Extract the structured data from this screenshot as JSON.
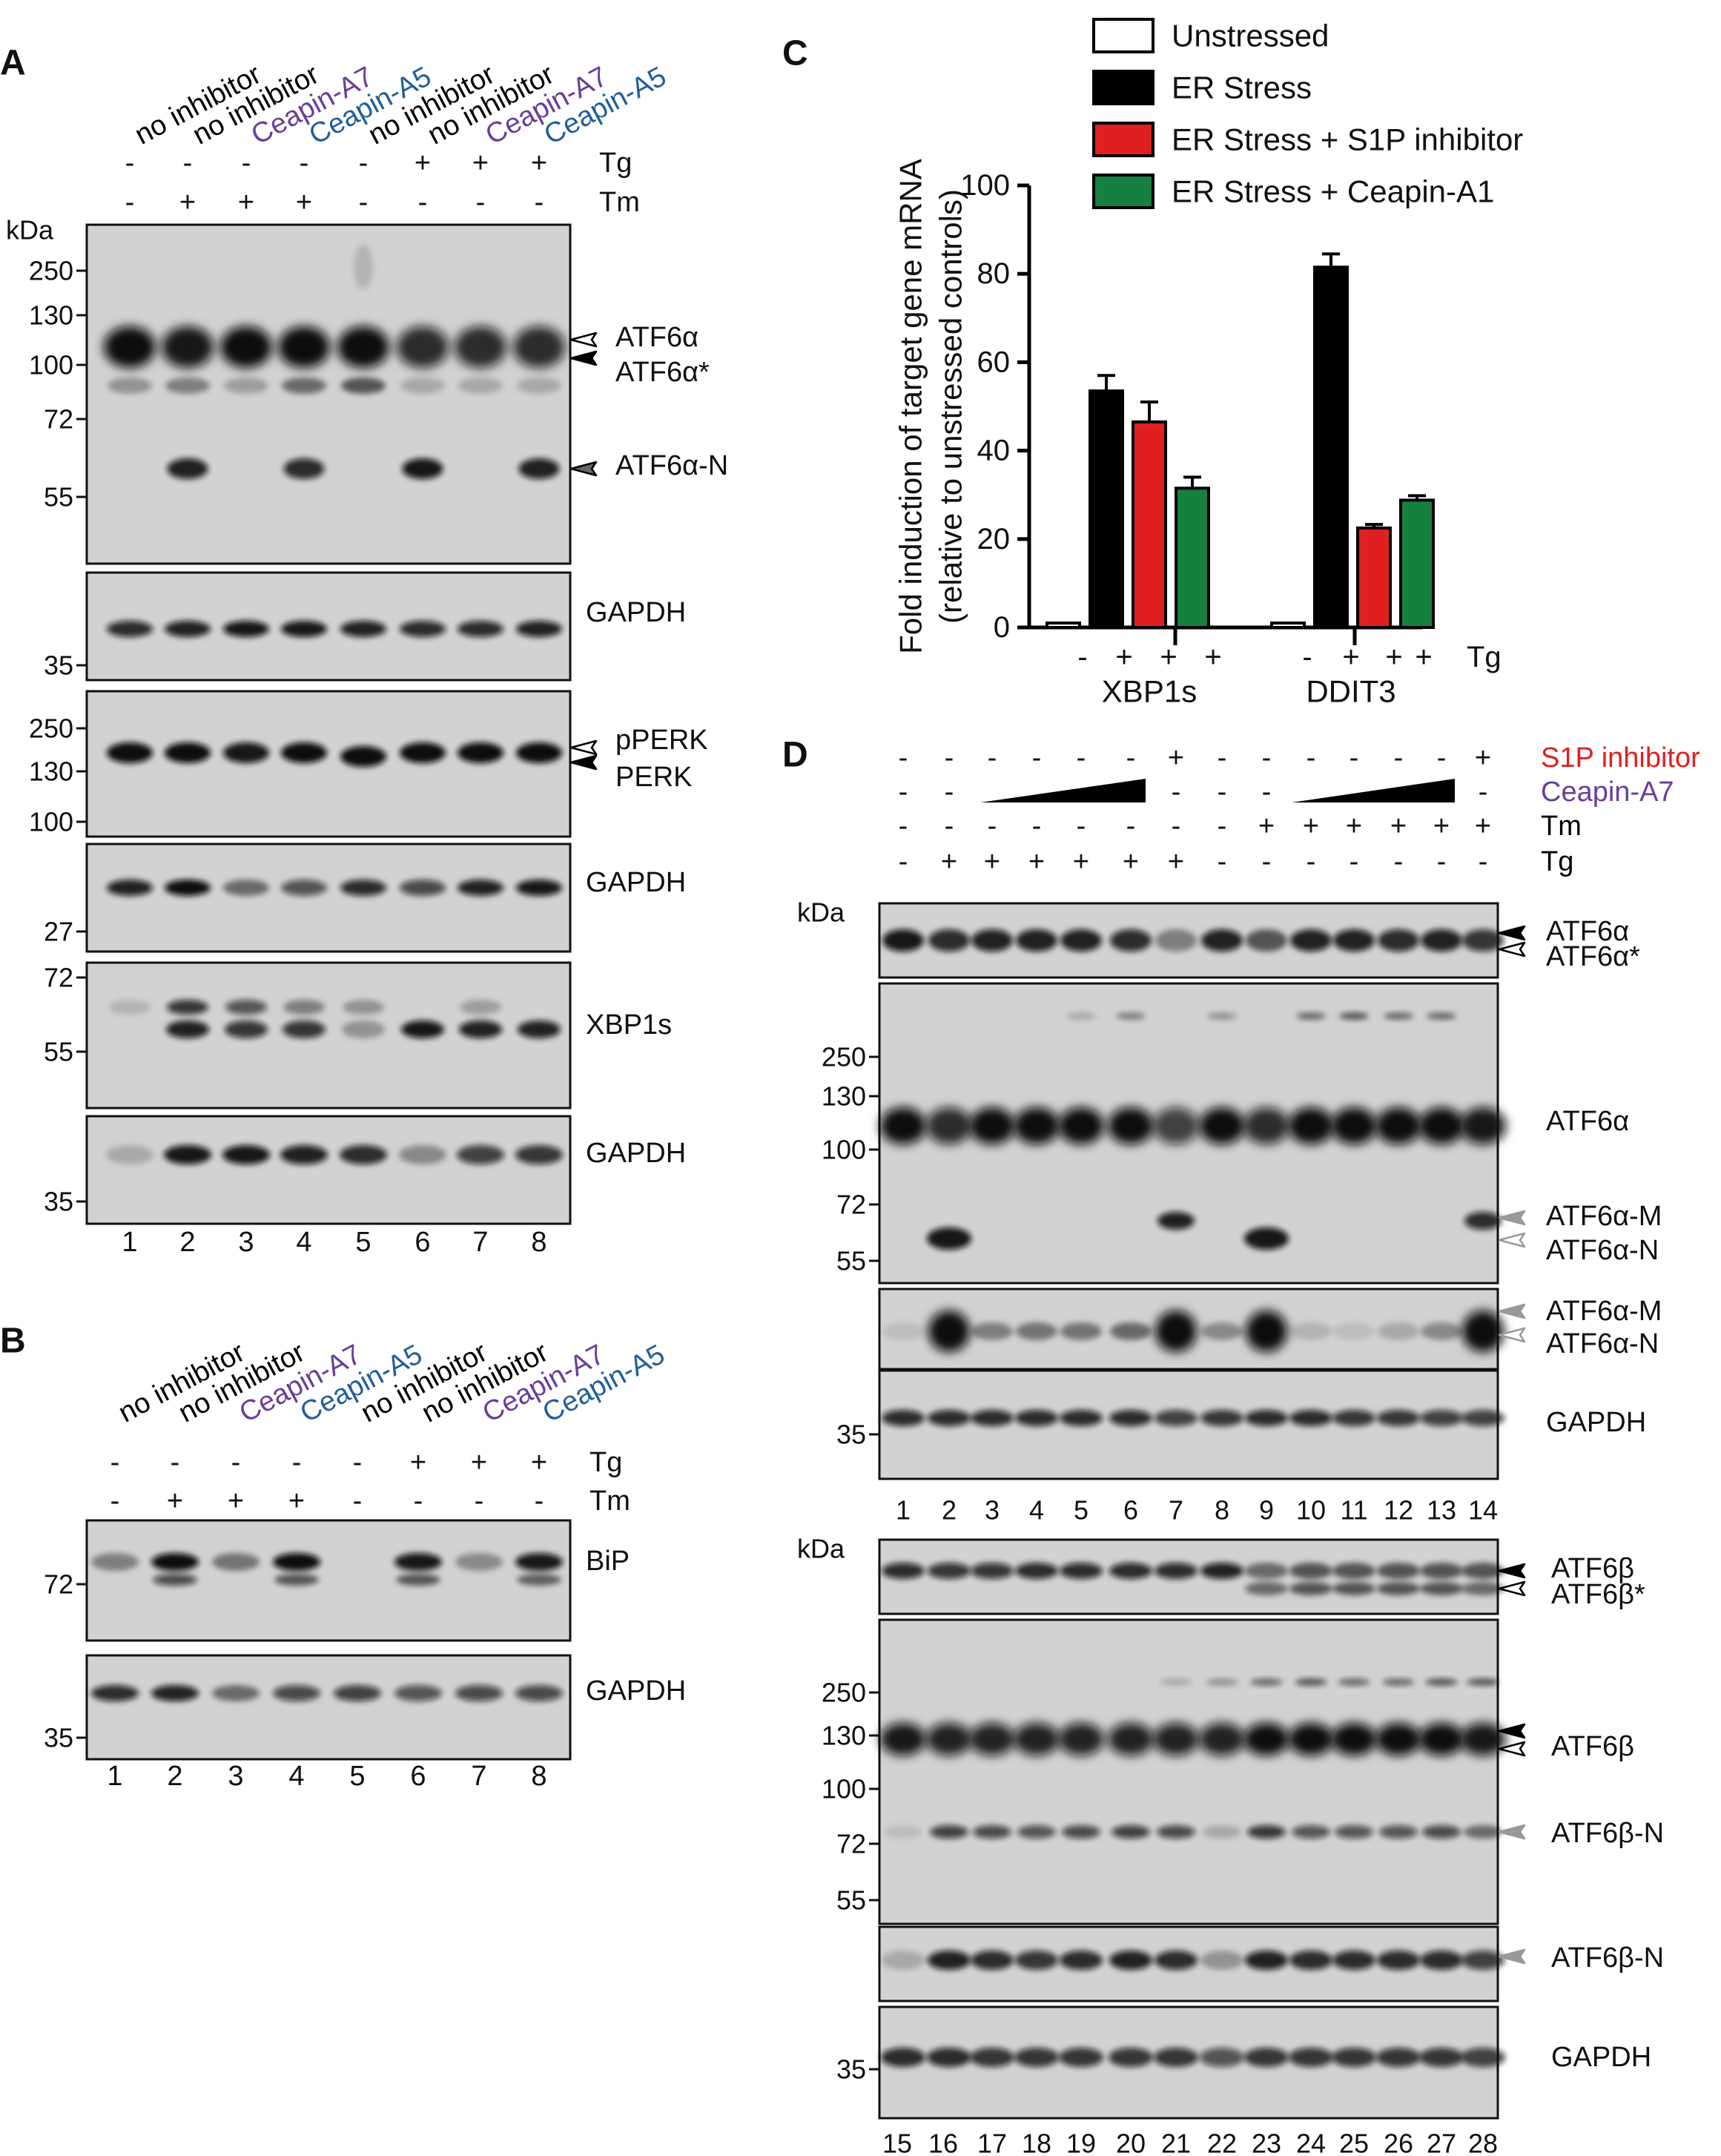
{
  "colors": {
    "purple": "#6a3d9a",
    "blue": "#1f5f99",
    "red": "#e02020",
    "green": "#158040",
    "black": "#000000",
    "gray": "#888888"
  },
  "panelA": {
    "label": "A",
    "lanes": [
      "no inhibitor",
      "no inhibitor",
      "Ceapin-A7",
      "Ceapin-A5",
      "no inhibitor",
      "no inhibitor",
      "Ceapin-A7",
      "Ceapin-A5"
    ],
    "lane_colors": [
      "black",
      "black",
      "purple",
      "blue",
      "black",
      "black",
      "purple",
      "blue"
    ],
    "tg": [
      "-",
      "-",
      "-",
      "-",
      "-",
      "+",
      "+",
      "+"
    ],
    "tm": [
      "-",
      "+",
      "+",
      "+",
      "-",
      "-",
      "-",
      "-"
    ],
    "tg_label": "Tg",
    "tm_label": "Tm",
    "kda_label": "kDa",
    "lane_numbers": [
      "1",
      "2",
      "3",
      "4",
      "5",
      "6",
      "7",
      "8"
    ],
    "blots": [
      {
        "name": "atf6a",
        "markers": [
          "250",
          "130",
          "100",
          "72",
          "55"
        ],
        "labels": [
          "ATF6α",
          "ATF6α*",
          "ATF6α-N"
        ]
      },
      {
        "name": "gapdh1",
        "markers": [
          "35"
        ],
        "labels": [
          "GAPDH"
        ]
      },
      {
        "name": "perk",
        "markers": [
          "250",
          "130",
          "100"
        ],
        "labels": [
          "pPERK",
          "PERK"
        ]
      },
      {
        "name": "gapdh2",
        "markers": [
          "27"
        ],
        "labels": [
          "GAPDH"
        ]
      },
      {
        "name": "xbp1s",
        "markers": [
          "72",
          "55"
        ],
        "labels": [
          "XBP1s"
        ]
      },
      {
        "name": "gapdh3",
        "markers": [
          "35"
        ],
        "labels": [
          "GAPDH"
        ]
      }
    ]
  },
  "panelB": {
    "label": "B",
    "lanes": [
      "no inhibitor",
      "no inhibitor",
      "Ceapin-A7",
      "Ceapin-A5",
      "no inhibitor",
      "no inhibitor",
      "Ceapin-A7",
      "Ceapin-A5"
    ],
    "lane_colors": [
      "black",
      "black",
      "purple",
      "blue",
      "black",
      "black",
      "purple",
      "blue"
    ],
    "tg": [
      "-",
      "-",
      "-",
      "-",
      "-",
      "+",
      "+",
      "+"
    ],
    "tm": [
      "-",
      "+",
      "+",
      "+",
      "-",
      "-",
      "-",
      "-"
    ],
    "tg_label": "Tg",
    "tm_label": "Tm",
    "lane_numbers": [
      "1",
      "2",
      "3",
      "4",
      "5",
      "6",
      "7",
      "8"
    ],
    "blots": [
      {
        "name": "bip",
        "markers": [
          "72"
        ],
        "labels": [
          "BiP"
        ]
      },
      {
        "name": "gapdh",
        "markers": [
          "35"
        ],
        "labels": [
          "GAPDH"
        ]
      }
    ]
  },
  "panelC": {
    "label": "C",
    "chart_data": {
      "type": "bar",
      "categories": [
        "XBP1s",
        "DDIT3"
      ],
      "series": [
        {
          "name": "Unstressed",
          "values": [
            1,
            1
          ],
          "errors": [
            0,
            0
          ],
          "color": "#ffffff"
        },
        {
          "name": "ER Stress",
          "values": [
            53.5,
            81.5
          ],
          "errors": [
            3.5,
            3
          ],
          "color": "#000000"
        },
        {
          "name": "ER Stress + S1P inhibitor",
          "values": [
            46.5,
            22.5
          ],
          "errors": [
            4.5,
            0.8
          ],
          "color": "#e02020"
        },
        {
          "name": "ER Stress + Ceapin-A1",
          "values": [
            31.5,
            28.8
          ],
          "errors": [
            2.5,
            1
          ],
          "color": "#158040"
        }
      ],
      "ylabel_line1": "Fold induction of target gene mRNA",
      "ylabel_line2": "(relative to unstressed controls)",
      "ylim": [
        0,
        100
      ],
      "yticks": [
        "0",
        "20",
        "40",
        "60",
        "80",
        "100"
      ],
      "tg_signs": [
        "-",
        "+",
        "+",
        "+",
        "-",
        "+",
        "+",
        "+"
      ],
      "tg_label": "Tg",
      "legend_position": "top"
    }
  },
  "panelD": {
    "label": "D",
    "treatments": [
      {
        "label": "S1P inhibitor",
        "color": "red",
        "signs": [
          "-",
          "-",
          "-",
          "-",
          "-",
          "-",
          "+",
          "-",
          "-",
          "-",
          "-",
          "-",
          "-",
          "+"
        ]
      },
      {
        "label": "Ceapin-A7",
        "color": "purple",
        "signs": [
          "-",
          "-",
          "",
          "",
          "",
          "",
          "-",
          "-",
          "-",
          "",
          "",
          "",
          "",
          "-"
        ]
      },
      {
        "label": "Tm",
        "color": "black",
        "signs": [
          "-",
          "-",
          "-",
          "-",
          "-",
          "-",
          "-",
          "-",
          "+",
          "+",
          "+",
          "+",
          "+",
          "+"
        ]
      },
      {
        "label": "Tg",
        "color": "black",
        "signs": [
          "-",
          "+",
          "+",
          "+",
          "+",
          "+",
          "+",
          "-",
          "-",
          "-",
          "-",
          "-",
          "-",
          "-"
        ]
      }
    ],
    "kda_label": "kDa",
    "top": {
      "lane_numbers": [
        "1",
        "2",
        "3",
        "4",
        "5",
        "6",
        "7",
        "8",
        "9",
        "10",
        "11",
        "12",
        "13",
        "14"
      ],
      "blots": [
        {
          "name": "atf6a-short",
          "markers": [],
          "labels": [
            "ATF6α",
            "ATF6α*"
          ]
        },
        {
          "name": "atf6a-long",
          "markers": [
            "250",
            "130",
            "100",
            "72",
            "55"
          ],
          "labels": [
            "ATF6α",
            "ATF6α-M",
            "ATF6α-N"
          ]
        },
        {
          "name": "atf6a-fragments",
          "markers": [],
          "labels": [
            "ATF6α-M",
            "ATF6α-N"
          ]
        },
        {
          "name": "gapdh",
          "markers": [
            "35"
          ],
          "labels": [
            "GAPDH"
          ]
        }
      ]
    },
    "bottom": {
      "lane_numbers": [
        "15",
        "16",
        "17",
        "18",
        "19",
        "20",
        "21",
        "22",
        "23",
        "24",
        "25",
        "26",
        "27",
        "28"
      ],
      "blots": [
        {
          "name": "atf6b-short",
          "markers": [],
          "labels": [
            "ATF6β",
            "ATF6β*"
          ]
        },
        {
          "name": "atf6b-long",
          "markers": [
            "250",
            "130",
            "100",
            "72",
            "55"
          ],
          "labels": [
            "ATF6β",
            "ATF6β-N"
          ]
        },
        {
          "name": "atf6b-fragment",
          "markers": [],
          "labels": [
            "ATF6β-N"
          ]
        },
        {
          "name": "gapdh",
          "markers": [
            "35"
          ],
          "labels": [
            "GAPDH"
          ]
        }
      ]
    }
  }
}
